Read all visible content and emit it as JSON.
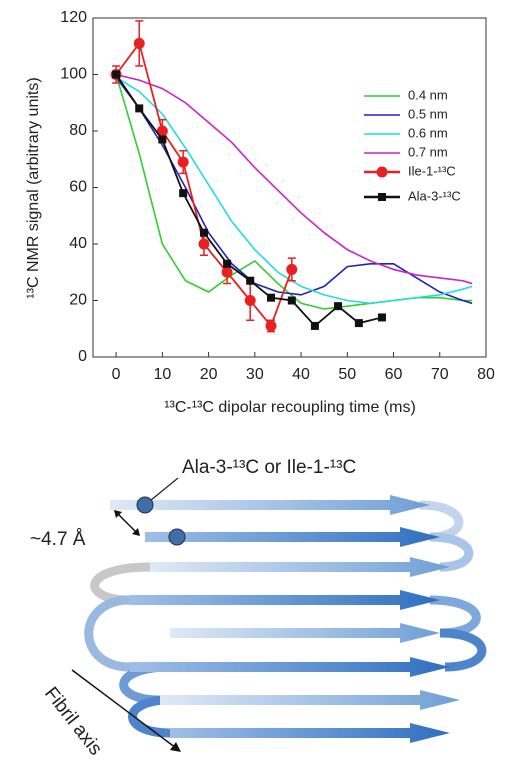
{
  "chart_data": {
    "type": "line",
    "xlabel": "¹³C-¹³C dipolar recoupling time (ms)",
    "ylabel": "¹³C NMR signal (arbitrary units)",
    "xlim": [
      -5,
      80
    ],
    "ylim": [
      0,
      120
    ],
    "xticks": [
      0,
      10,
      20,
      30,
      40,
      50,
      60,
      70,
      80
    ],
    "yticks": [
      0,
      20,
      40,
      60,
      80,
      100,
      120
    ],
    "legend": "right",
    "series": [
      {
        "name": "0.4 nm",
        "color": "#33cc33",
        "x": [
          0,
          5,
          10,
          15,
          20,
          25,
          30,
          35,
          40,
          45,
          50,
          55,
          60,
          65,
          70,
          75,
          77
        ],
        "values": [
          100,
          72,
          40,
          27,
          23,
          29,
          34,
          26,
          19,
          17,
          18,
          19,
          20,
          21,
          21,
          20,
          20
        ]
      },
      {
        "name": "0.5 nm",
        "color": "#2222bb",
        "x": [
          0,
          5,
          10,
          15,
          20,
          25,
          30,
          35,
          40,
          45,
          50,
          55,
          60,
          65,
          70,
          75,
          77
        ],
        "values": [
          99,
          88,
          75,
          60,
          44,
          33,
          26,
          23,
          22,
          25,
          32,
          33,
          33,
          28,
          23,
          20,
          19
        ]
      },
      {
        "name": "0.6 nm",
        "color": "#22dddd",
        "x": [
          0,
          5,
          10,
          15,
          20,
          25,
          30,
          35,
          40,
          45,
          50,
          55,
          60,
          65,
          70,
          75,
          77
        ],
        "values": [
          99,
          94,
          86,
          74,
          61,
          48,
          38,
          30,
          25,
          22,
          20,
          19,
          20,
          21,
          22,
          24,
          25
        ]
      },
      {
        "name": "0.7 nm",
        "color": "#cc22cc",
        "x": [
          0,
          5,
          10,
          15,
          20,
          25,
          30,
          35,
          40,
          45,
          50,
          55,
          60,
          65,
          70,
          75,
          77
        ],
        "values": [
          100,
          98,
          95,
          90,
          83,
          76,
          67,
          59,
          51,
          44,
          38,
          34,
          31,
          29,
          28,
          27,
          26
        ]
      },
      {
        "name": "Ile-1-¹³C",
        "color": "#e82020",
        "marker": "circle",
        "x": [
          0,
          5,
          10,
          14.5,
          19,
          24,
          29,
          33.5,
          38
        ],
        "values": [
          100,
          111,
          80,
          69,
          40,
          30,
          20,
          11,
          31
        ],
        "errors": [
          3,
          8,
          4,
          4,
          4,
          4,
          7,
          2,
          4
        ]
      },
      {
        "name": "Ala-3-¹³C",
        "color": "#111111",
        "marker": "square",
        "x": [
          0,
          5,
          10,
          14.5,
          19,
          24,
          29,
          33.5,
          38,
          43,
          48,
          52.5,
          57.5
        ],
        "values": [
          100,
          88,
          77,
          58,
          44,
          33,
          27,
          21,
          20,
          11,
          18,
          12,
          14
        ]
      }
    ]
  },
  "diagram": {
    "site_label": "Ala-3-¹³C or Ile-1-¹³C",
    "spacing": "~4.7 Å",
    "axis": "Fibril axis"
  }
}
